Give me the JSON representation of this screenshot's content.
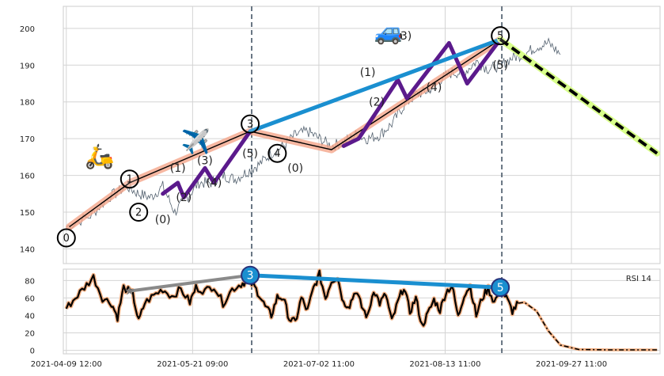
{
  "chart_data": [
    {
      "panel": "price",
      "type": "line",
      "ylim": [
        136,
        206
      ],
      "yticks": [
        140,
        150,
        160,
        170,
        180,
        190,
        200
      ],
      "xticks": [
        "2021-04-09 12:00",
        "2021-05-21 09:00",
        "2021-07-02 11:00",
        "2021-08-13 11:00",
        "2021-09-27 11:00"
      ],
      "x_unit": "days from 2021-04-09 12:00",
      "xlim": [
        -1,
        197
      ],
      "grid": true,
      "price_path": [
        [
          0,
          146
        ],
        [
          8,
          149
        ],
        [
          14,
          154
        ],
        [
          20,
          157
        ],
        [
          24,
          155
        ],
        [
          28,
          154
        ],
        [
          32,
          157
        ],
        [
          36,
          150
        ],
        [
          40,
          154
        ],
        [
          44,
          158
        ],
        [
          48,
          158
        ],
        [
          52,
          160
        ],
        [
          56,
          159
        ],
        [
          60,
          161
        ],
        [
          64,
          163
        ],
        [
          68,
          166
        ],
        [
          72,
          168
        ],
        [
          76,
          171
        ],
        [
          80,
          172
        ],
        [
          84,
          170
        ],
        [
          88,
          168
        ],
        [
          92,
          169
        ],
        [
          96,
          171
        ],
        [
          100,
          170
        ],
        [
          104,
          171
        ],
        [
          108,
          174
        ],
        [
          112,
          179
        ],
        [
          116,
          182
        ],
        [
          120,
          183
        ],
        [
          124,
          186
        ],
        [
          128,
          188
        ],
        [
          132,
          188
        ],
        [
          136,
          191
        ],
        [
          140,
          189
        ],
        [
          144,
          190
        ],
        [
          148,
          192
        ],
        [
          152,
          193
        ],
        [
          156,
          195
        ],
        [
          160,
          196
        ],
        [
          164,
          193
        ]
      ],
      "dashed_vlines_x": [
        61.5,
        144.5
      ],
      "series": [
        {
          "role": "wave_0_5_line",
          "color": "#000000",
          "values": [
            [
              1,
              146
            ],
            [
              21,
              158
            ],
            [
              61,
              172
            ],
            [
              88,
              167
            ],
            [
              144,
              197
            ]
          ]
        },
        {
          "role": "wave_0_5_highlight",
          "color": "#f4a58a",
          "values": [
            [
              1,
              146
            ],
            [
              21,
              158
            ],
            [
              61,
              172
            ],
            [
              88,
              167
            ],
            [
              144,
              197
            ]
          ]
        },
        {
          "role": "subwave_a",
          "color": "#5b1a8c",
          "values": [
            [
              32,
              155
            ],
            [
              37,
              158
            ],
            [
              39,
              154
            ],
            [
              46,
              162
            ],
            [
              49,
              158
            ],
            [
              61,
              172
            ]
          ]
        },
        {
          "role": "subwave_b",
          "color": "#5b1a8c",
          "values": [
            [
              92,
              168
            ],
            [
              97,
              170
            ],
            [
              110,
              186
            ],
            [
              113,
              181
            ],
            [
              127,
              196
            ],
            [
              133,
              185
            ],
            [
              144,
              197
            ]
          ]
        },
        {
          "role": "trendline",
          "color": "#1a8fd0",
          "values": [
            [
              61,
              172
            ],
            [
              144,
              197
            ]
          ]
        },
        {
          "role": "projection",
          "color": "#000000",
          "highlight": "#d8ff8a",
          "values": [
            [
              144,
              197
            ],
            [
              196,
              166
            ]
          ]
        }
      ],
      "wave_points": [
        {
          "label": "0",
          "x": 0,
          "y": 143
        },
        {
          "label": "1",
          "x": 21,
          "y": 159
        },
        {
          "label": "2",
          "x": 24,
          "y": 150
        },
        {
          "label": "3",
          "x": 61,
          "y": 174
        },
        {
          "label": "4",
          "x": 70,
          "y": 166
        },
        {
          "label": "5",
          "x": 144,
          "y": 198
        }
      ],
      "subwave_labels": [
        {
          "label": "(0)",
          "x": 32,
          "y": 147
        },
        {
          "label": "(1)",
          "x": 37,
          "y": 161
        },
        {
          "label": "(2)",
          "x": 39,
          "y": 153
        },
        {
          "label": "(3)",
          "x": 46,
          "y": 163
        },
        {
          "label": "(4)",
          "x": 49,
          "y": 157
        },
        {
          "label": "(5)",
          "x": 61,
          "y": 165
        },
        {
          "label": "(0)",
          "x": 76,
          "y": 161
        },
        {
          "label": "(1)",
          "x": 100,
          "y": 187
        },
        {
          "label": "(2)",
          "x": 103,
          "y": 179
        },
        {
          "label": "(3)",
          "x": 112,
          "y": 197
        },
        {
          "label": "(4)",
          "x": 122,
          "y": 183
        },
        {
          "label": "(5)",
          "x": 144,
          "y": 189
        }
      ],
      "emojis": [
        {
          "name": "scooter",
          "glyph": "🛵",
          "x": 11,
          "y": 163
        },
        {
          "name": "airplane",
          "glyph": "✈️",
          "x": 43,
          "y": 167
        },
        {
          "name": "car",
          "glyph": "🚙",
          "x": 107,
          "y": 197
        }
      ]
    },
    {
      "panel": "rsi",
      "type": "line",
      "legend": "RSI 14",
      "legend_position": "top-right",
      "ylim": [
        -4,
        93
      ],
      "yticks": [
        0,
        20,
        40,
        60,
        80
      ],
      "grid": true,
      "rsi_path": [
        [
          0,
          48
        ],
        [
          3,
          60
        ],
        [
          6,
          72
        ],
        [
          9,
          84
        ],
        [
          12,
          60
        ],
        [
          15,
          54
        ],
        [
          17,
          38
        ],
        [
          19,
          72
        ],
        [
          22,
          65
        ],
        [
          24,
          33
        ],
        [
          26,
          54
        ],
        [
          29,
          63
        ],
        [
          32,
          70
        ],
        [
          35,
          62
        ],
        [
          38,
          70
        ],
        [
          41,
          55
        ],
        [
          43,
          72
        ],
        [
          46,
          68
        ],
        [
          49,
          74
        ],
        [
          52,
          54
        ],
        [
          55,
          70
        ],
        [
          58,
          76
        ],
        [
          60,
          80
        ],
        [
          62,
          75
        ],
        [
          64,
          64
        ],
        [
          66,
          50
        ],
        [
          68,
          40
        ],
        [
          70,
          61
        ],
        [
          72,
          60
        ],
        [
          74,
          36
        ],
        [
          76,
          32
        ],
        [
          78,
          60
        ],
        [
          80,
          45
        ],
        [
          82,
          71
        ],
        [
          84,
          87
        ],
        [
          86,
          60
        ],
        [
          88,
          80
        ],
        [
          90,
          84
        ],
        [
          92,
          54
        ],
        [
          94,
          52
        ],
        [
          96,
          69
        ],
        [
          98,
          50
        ],
        [
          100,
          38
        ],
        [
          102,
          70
        ],
        [
          104,
          54
        ],
        [
          106,
          64
        ],
        [
          108,
          33
        ],
        [
          110,
          55
        ],
        [
          112,
          73
        ],
        [
          114,
          44
        ],
        [
          116,
          60
        ],
        [
          118,
          28
        ],
        [
          120,
          42
        ],
        [
          122,
          58
        ],
        [
          124,
          46
        ],
        [
          126,
          67
        ],
        [
          128,
          74
        ],
        [
          130,
          38
        ],
        [
          132,
          64
        ],
        [
          134,
          74
        ],
        [
          136,
          40
        ],
        [
          138,
          60
        ],
        [
          140,
          71
        ],
        [
          142,
          55
        ],
        [
          144,
          70
        ],
        [
          146,
          60
        ],
        [
          148,
          45
        ],
        [
          150,
          54
        ]
      ],
      "rsi_projection": [
        [
          150,
          54
        ],
        [
          152,
          55
        ],
        [
          156,
          45
        ],
        [
          160,
          22
        ],
        [
          164,
          6
        ],
        [
          170,
          1
        ],
        [
          180,
          0.5
        ],
        [
          196,
          0.5
        ]
      ],
      "gray_line": [
        [
          21,
          68
        ],
        [
          61,
          86
        ]
      ],
      "blue_line": [
        [
          61,
          86
        ],
        [
          144,
          72
        ]
      ],
      "star_point": [
        21,
        68
      ],
      "markers": [
        {
          "label": "3",
          "x": 61,
          "y": 86
        },
        {
          "label": "5",
          "x": 144,
          "y": 72
        }
      ]
    }
  ],
  "colors": {
    "price_line": "#53616f",
    "rsi_line": "#000000",
    "rsi_halo": "#f2b083",
    "grid": "#d4d4d4",
    "dashed_vline": "#455566",
    "marker_fill": "#1a8fd0",
    "marker_edge": "#29327a"
  }
}
